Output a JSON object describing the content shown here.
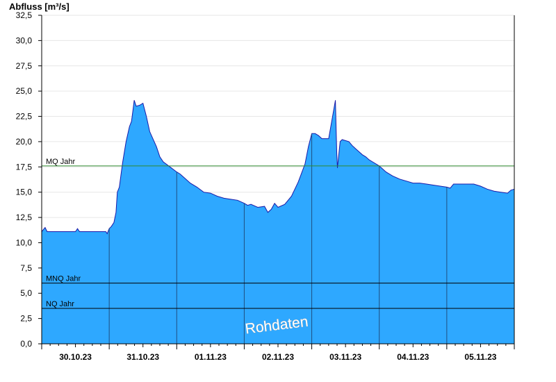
{
  "chart_data": {
    "type": "area",
    "ylabel": "Abfluss [m³/s]",
    "ylim": [
      0,
      32.5
    ],
    "yticks": [
      "0,0",
      "2,5",
      "5,0",
      "7,5",
      "10,0",
      "12,5",
      "15,0",
      "17,5",
      "20,0",
      "22,5",
      "25,0",
      "27,5",
      "30,0",
      "32,5"
    ],
    "yticks_values": [
      0,
      2.5,
      5,
      7.5,
      10,
      12.5,
      15,
      17.5,
      20,
      22.5,
      25,
      27.5,
      30,
      32.5
    ],
    "x_categories": [
      "30.10.23",
      "31.10.23",
      "01.11.23",
      "02.11.23",
      "03.11.23",
      "04.11.23",
      "05.11.23"
    ],
    "xlim_days": [
      0,
      7
    ],
    "grid": "horizontal",
    "watermark": "Rohdaten",
    "colors": {
      "fill": "#2ea8ff",
      "line": "#1a1aa8",
      "mq": "#2e8b2e",
      "ref": "#000000",
      "grid": "#e6e6e6"
    },
    "reference_lines": [
      {
        "label": "MQ Jahr",
        "value": 17.6,
        "color": "#2e8b2e"
      },
      {
        "label": "MNQ Jahr",
        "value": 6.0,
        "color": "#000000"
      },
      {
        "label": "NQ Jahr",
        "value": 3.5,
        "color": "#000000"
      }
    ],
    "series": [
      {
        "x": [
          0,
          0.05,
          0.08,
          0.1,
          0.5,
          0.53,
          0.56,
          0.6,
          0.95,
          0.97,
          1.0,
          1.03,
          1.07,
          1.1,
          1.12,
          1.15,
          1.18,
          1.2,
          1.25,
          1.3,
          1.33,
          1.35,
          1.37,
          1.4,
          1.45,
          1.5,
          1.55,
          1.6,
          1.7,
          1.75,
          1.8,
          1.9,
          2.0,
          2.05,
          2.1,
          2.15,
          2.2,
          2.3,
          2.4,
          2.5,
          2.6,
          2.7,
          2.8,
          2.9,
          3.0,
          3.05,
          3.1,
          3.2,
          3.3,
          3.35,
          3.4,
          3.45,
          3.5,
          3.6,
          3.7,
          3.8,
          3.9,
          3.95,
          4.0,
          4.05,
          4.1,
          4.15,
          4.2,
          4.25,
          4.35,
          4.37,
          4.38,
          4.42,
          4.45,
          4.55,
          4.6,
          4.65,
          4.7,
          4.75,
          4.8,
          4.85,
          4.9,
          5.0,
          5.05,
          5.1,
          5.2,
          5.3,
          5.4,
          5.5,
          5.6,
          5.7,
          5.8,
          6.0,
          6.05,
          6.1,
          6.2,
          6.3,
          6.4,
          6.5,
          6.6,
          6.7,
          6.8,
          6.9,
          6.95,
          7.0
        ],
        "values": [
          11.1,
          11.5,
          11.1,
          11.1,
          11.1,
          11.4,
          11.1,
          11.1,
          11.1,
          10.9,
          11.4,
          11.6,
          12.0,
          13.0,
          15.0,
          15.5,
          17.0,
          18.0,
          20.0,
          21.5,
          22.0,
          23.0,
          24.1,
          23.5,
          23.6,
          23.8,
          22.5,
          21.0,
          19.5,
          18.5,
          18.0,
          17.5,
          17.0,
          16.8,
          16.5,
          16.2,
          15.9,
          15.5,
          15.0,
          14.9,
          14.6,
          14.4,
          14.3,
          14.2,
          13.9,
          13.7,
          13.8,
          13.5,
          13.6,
          13.0,
          13.3,
          13.9,
          13.5,
          13.8,
          14.6,
          16.0,
          17.8,
          19.5,
          20.8,
          20.8,
          20.6,
          20.3,
          20.3,
          20.3,
          24.1,
          19.0,
          17.4,
          20.0,
          20.2,
          20.0,
          19.6,
          19.3,
          19.0,
          18.7,
          18.5,
          18.2,
          18.0,
          17.6,
          17.3,
          17.0,
          16.6,
          16.3,
          16.1,
          15.9,
          15.9,
          15.8,
          15.7,
          15.5,
          15.4,
          15.8,
          15.8,
          15.8,
          15.8,
          15.6,
          15.3,
          15.1,
          15.0,
          14.9,
          15.2,
          15.3
        ]
      }
    ]
  }
}
